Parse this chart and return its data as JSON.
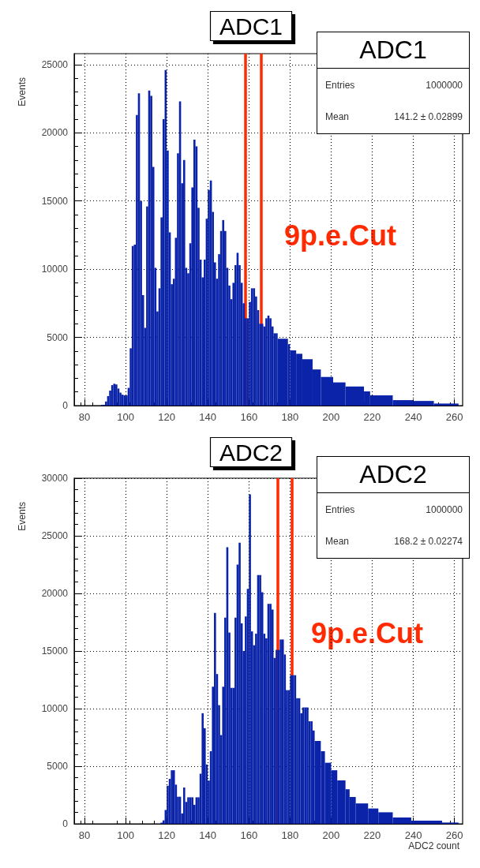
{
  "chart_data": [
    {
      "type": "histogram",
      "title": "ADC1",
      "ylabel": "Events",
      "color": "#0a23a8",
      "bins": [
        88,
        89,
        90,
        91,
        92,
        93,
        94,
        95,
        96,
        97,
        98,
        99,
        100,
        101,
        102,
        103,
        104,
        105,
        106,
        107,
        108,
        109,
        110,
        111,
        112,
        113,
        114,
        115,
        116,
        117,
        118,
        119,
        120,
        121,
        122,
        123,
        124,
        125,
        126,
        127,
        128,
        129,
        130,
        131,
        132,
        133,
        134,
        135,
        136,
        137,
        138,
        139,
        140,
        141,
        142,
        143,
        144,
        145,
        146,
        147,
        148,
        149,
        150,
        151,
        152,
        153,
        154,
        155,
        156,
        157,
        158,
        159,
        160,
        161,
        162,
        163,
        164,
        165,
        166,
        167,
        168,
        169,
        170,
        171,
        172,
        173,
        174,
        179,
        180,
        183,
        186,
        191,
        195,
        201,
        207,
        216,
        219,
        230,
        240,
        250,
        262
      ],
      "values": [
        50,
        60,
        300,
        700,
        1100,
        1500,
        1600,
        1550,
        1250,
        950,
        800,
        750,
        750,
        1300,
        4200,
        11700,
        11800,
        21300,
        22900,
        15000,
        8100,
        5700,
        14600,
        23100,
        22700,
        17500,
        10100,
        6900,
        8600,
        13800,
        21000,
        24600,
        18700,
        12700,
        8900,
        9300,
        12300,
        18500,
        22300,
        16300,
        18000,
        10100,
        9700,
        11900,
        16000,
        19500,
        19000,
        14500,
        10700,
        9400,
        10700,
        13700,
        15800,
        16500,
        14200,
        10500,
        9300,
        11100,
        12800,
        13600,
        12800,
        10100,
        8800,
        7800,
        9000,
        10300,
        11200,
        10300,
        9000,
        7500,
        6400,
        6400,
        7600,
        8600,
        8600,
        8000,
        7000,
        6000,
        6000,
        5800,
        6400,
        6600,
        6400,
        5800,
        5300,
        5300,
        4900,
        4500,
        4050,
        3800,
        3400,
        2650,
        2100,
        1700,
        1400,
        1040,
        750,
        400,
        340,
        150
      ],
      "xlim": [
        75,
        264
      ],
      "ylim": [
        0,
        25800
      ],
      "xticks": [
        80,
        100,
        120,
        140,
        160,
        180,
        200,
        220,
        240,
        260
      ],
      "yticks": [
        0,
        5000,
        10000,
        15000,
        20000,
        25000
      ],
      "grid": true,
      "ref_lines": [
        {
          "axis": "x",
          "value": 158.4,
          "color": "#ff2a00"
        },
        {
          "axis": "x",
          "value": 166,
          "color": "#ff2a00"
        }
      ],
      "annotations": [
        "9p.e.Cut",
        "ADC1",
        "Entries",
        "1000000",
        "Mean",
        "141.2  ± 0.02899"
      ]
    },
    {
      "type": "histogram",
      "title": "ADC2",
      "xlabel": "ADC2 count",
      "ylabel": "Events",
      "color": "#0a23a8",
      "bins": [
        117,
        118,
        119,
        120,
        121,
        122,
        123,
        124,
        125,
        126,
        127,
        128,
        129,
        130,
        131,
        132,
        133,
        134,
        135,
        136,
        137,
        138,
        139,
        140,
        141,
        142,
        143,
        144,
        145,
        146,
        147,
        148,
        149,
        150,
        151,
        152,
        153,
        154,
        155,
        156,
        157,
        158,
        159,
        160,
        161,
        162,
        163,
        164,
        165,
        166,
        167,
        168,
        169,
        170,
        171,
        172,
        173,
        174,
        175,
        176,
        177,
        178,
        179,
        180,
        181,
        182,
        183,
        184,
        185,
        186,
        187,
        188,
        189,
        190,
        191,
        192,
        195,
        197,
        200,
        203,
        207,
        209,
        212,
        218,
        223,
        230,
        239,
        254,
        262
      ],
      "values": [
        100,
        300,
        1200,
        3300,
        3900,
        4650,
        4650,
        3400,
        2350,
        2350,
        900,
        3150,
        1900,
        2300,
        2300,
        2300,
        1650,
        2300,
        2300,
        4350,
        9600,
        8300,
        5150,
        3750,
        6300,
        11900,
        18300,
        13000,
        10300,
        7700,
        11900,
        17900,
        24000,
        16600,
        11800,
        11800,
        17900,
        22500,
        24400,
        17400,
        15000,
        18000,
        20400,
        28600,
        16700,
        15500,
        16500,
        21600,
        21600,
        20100,
        16500,
        16100,
        19100,
        19100,
        18600,
        14400,
        15100,
        15100,
        16000,
        16000,
        14700,
        11600,
        11600,
        12900,
        12900,
        12900,
        10900,
        10900,
        9600,
        10100,
        10100,
        10100,
        8900,
        8900,
        8100,
        7200,
        6300,
        5300,
        4650,
        3770,
        3000,
        2330,
        1770,
        1330,
        1000,
        550,
        270,
        110
      ],
      "xlim": [
        75,
        264
      ],
      "ylim": [
        0,
        30000
      ],
      "xticks": [
        80,
        100,
        120,
        140,
        160,
        180,
        200,
        220,
        240,
        260
      ],
      "yticks": [
        0,
        5000,
        10000,
        15000,
        20000,
        25000,
        30000
      ],
      "grid": true,
      "ref_lines": [
        {
          "axis": "x",
          "value": 174,
          "color": "#ff2a00"
        },
        {
          "axis": "x",
          "value": 181,
          "color": "#ff2a00"
        }
      ],
      "annotations": [
        "9p.e.Cut",
        "ADC2",
        "Entries",
        "1000000",
        "Mean",
        "168.2  ± 0.02274"
      ]
    }
  ]
}
